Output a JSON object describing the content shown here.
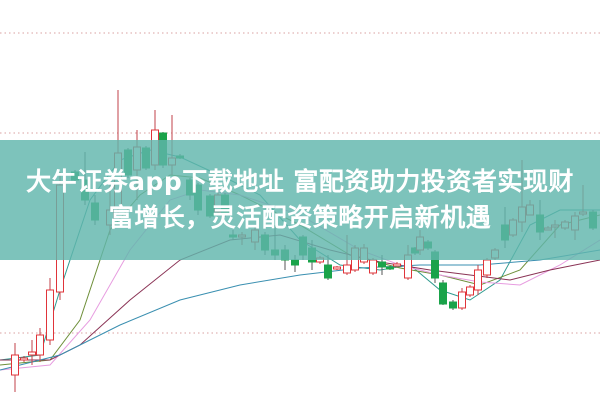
{
  "banner": {
    "line1": "大牛证券app下载地址 富配资助力投资者实现财",
    "line2": "富增长，灵活配资策略开启新机遇",
    "background": "#60b6ac",
    "text_color": "#ffffff"
  },
  "chart_data": {
    "type": "candlestick",
    "title": "",
    "xlabel": "",
    "ylabel": "",
    "grid": true,
    "up_color": "#e0343a",
    "down_color": "#1aa34a",
    "ma_colors": [
      "#2f9a8f",
      "#6e8f3a",
      "#e79ce0",
      "#8a3355",
      "#3a8fb0"
    ],
    "candles": [
      [
        15,
        25,
        45,
        57,
        8
      ],
      [
        24,
        40,
        42,
        44,
        38
      ],
      [
        32,
        45,
        48,
        60,
        35
      ],
      [
        40,
        45,
        65,
        72,
        38
      ],
      [
        50,
        60,
        110,
        122,
        55
      ],
      [
        60,
        108,
        215,
        228,
        100
      ],
      [
        75,
        228,
        220,
        230,
        218
      ],
      [
        85,
        220,
        200,
        248,
        195
      ],
      [
        95,
        197,
        180,
        205,
        175
      ],
      [
        110,
        175,
        190,
        215,
        165
      ],
      [
        118,
        192,
        247,
        310,
        185
      ],
      [
        128,
        250,
        225,
        252,
        222
      ],
      [
        137,
        230,
        253,
        270,
        200
      ],
      [
        146,
        252,
        232,
        254,
        230
      ],
      [
        155,
        235,
        270,
        290,
        230
      ],
      [
        163,
        267,
        235,
        268,
        232
      ],
      [
        172,
        235,
        242,
        285,
        225
      ],
      [
        180,
        244,
        243,
        246,
        241
      ],
      [
        190,
        220,
        205,
        222,
        200
      ],
      [
        198,
        215,
        190,
        217,
        185
      ],
      [
        210,
        204,
        184,
        206,
        182
      ],
      [
        218,
        188,
        205,
        208,
        185
      ],
      [
        225,
        205,
        185,
        207,
        183
      ],
      [
        233,
        165,
        164,
        170,
        160
      ],
      [
        242,
        164,
        165,
        168,
        155
      ],
      [
        255,
        158,
        170,
        175,
        150
      ],
      [
        265,
        165,
        150,
        168,
        145
      ],
      [
        275,
        150,
        145,
        175,
        140
      ],
      [
        285,
        150,
        140,
        155,
        130
      ],
      [
        295,
        140,
        135,
        145,
        128
      ],
      [
        303,
        163,
        145,
        165,
        140
      ],
      [
        312,
        152,
        138,
        160,
        130
      ],
      [
        320,
        138,
        142,
        144,
        136
      ],
      [
        328,
        135,
        122,
        145,
        120
      ],
      [
        337,
        132,
        133,
        134,
        130
      ],
      [
        347,
        127,
        135,
        165,
        125
      ],
      [
        355,
        130,
        152,
        155,
        128
      ],
      [
        364,
        138,
        152,
        156,
        136
      ],
      [
        373,
        127,
        140,
        142,
        125
      ],
      [
        382,
        138,
        133,
        145,
        125
      ],
      [
        390,
        133,
        131,
        134,
        130
      ],
      [
        397,
        136,
        136,
        138,
        134
      ],
      [
        408,
        122,
        145,
        155,
        120
      ],
      [
        415,
        152,
        147,
        153,
        145
      ],
      [
        420,
        150,
        163,
        170,
        145
      ],
      [
        428,
        158,
        152,
        160,
        150
      ],
      [
        435,
        148,
        122,
        150,
        117
      ],
      [
        443,
        117,
        96,
        120,
        95
      ],
      [
        453,
        98,
        92,
        100,
        90
      ],
      [
        462,
        92,
        108,
        112,
        90
      ],
      [
        470,
        105,
        113,
        115,
        103
      ],
      [
        478,
        110,
        130,
        135,
        105
      ],
      [
        487,
        125,
        140,
        142,
        122
      ],
      [
        495,
        142,
        150,
        152,
        140
      ],
      [
        505,
        175,
        160,
        193,
        152
      ],
      [
        513,
        165,
        180,
        182,
        163
      ],
      [
        522,
        178,
        193,
        240,
        168
      ],
      [
        530,
        185,
        195,
        200,
        188
      ],
      [
        540,
        185,
        168,
        200,
        160
      ],
      [
        548,
        172,
        172,
        174,
        170
      ],
      [
        555,
        175,
        175,
        180,
        162
      ],
      [
        565,
        172,
        178,
        180,
        170
      ],
      [
        575,
        170,
        184,
        188,
        160
      ],
      [
        583,
        186,
        188,
        215,
        184
      ],
      [
        593,
        188,
        172,
        190,
        170
      ]
    ],
    "moving_averages": [
      [
        [
          0,
          40
        ],
        [
          40,
          45
        ],
        [
          60,
          110
        ],
        [
          90,
          200
        ],
        [
          120,
          240
        ],
        [
          150,
          250
        ],
        [
          180,
          243
        ],
        [
          230,
          220
        ],
        [
          260,
          205
        ],
        [
          300,
          160
        ],
        [
          340,
          135
        ],
        [
          380,
          130
        ],
        [
          410,
          135
        ],
        [
          440,
          110
        ],
        [
          470,
          100
        ],
        [
          500,
          120
        ],
        [
          530,
          175
        ],
        [
          560,
          190
        ],
        [
          600,
          190
        ]
      ],
      [
        [
          0,
          35
        ],
        [
          50,
          40
        ],
        [
          80,
          80
        ],
        [
          110,
          170
        ],
        [
          140,
          205
        ],
        [
          170,
          225
        ],
        [
          200,
          222
        ],
        [
          240,
          205
        ],
        [
          300,
          175
        ],
        [
          350,
          145
        ],
        [
          400,
          132
        ],
        [
          440,
          125
        ],
        [
          480,
          115
        ],
        [
          520,
          130
        ],
        [
          560,
          175
        ],
        [
          600,
          185
        ]
      ],
      [
        [
          0,
          30
        ],
        [
          50,
          35
        ],
        [
          90,
          80
        ],
        [
          130,
          150
        ],
        [
          170,
          200
        ],
        [
          200,
          210
        ],
        [
          240,
          205
        ],
        [
          300,
          185
        ],
        [
          360,
          150
        ],
        [
          400,
          135
        ],
        [
          440,
          125
        ],
        [
          480,
          118
        ],
        [
          520,
          115
        ],
        [
          560,
          135
        ],
        [
          600,
          160
        ]
      ],
      [
        [
          0,
          40
        ],
        [
          50,
          40
        ],
        [
          80,
          55
        ],
        [
          130,
          100
        ],
        [
          180,
          140
        ],
        [
          230,
          160
        ],
        [
          280,
          165
        ],
        [
          330,
          150
        ],
        [
          380,
          138
        ],
        [
          430,
          130
        ],
        [
          470,
          125
        ],
        [
          510,
          120
        ],
        [
          550,
          130
        ],
        [
          600,
          140
        ]
      ],
      [
        [
          0,
          30
        ],
        [
          60,
          45
        ],
        [
          120,
          75
        ],
        [
          180,
          100
        ],
        [
          240,
          115
        ],
        [
          300,
          125
        ],
        [
          360,
          132
        ],
        [
          420,
          135
        ],
        [
          480,
          135
        ],
        [
          540,
          140
        ],
        [
          600,
          150
        ]
      ]
    ],
    "grid_levels": [
      367,
      267,
      67
    ]
  }
}
